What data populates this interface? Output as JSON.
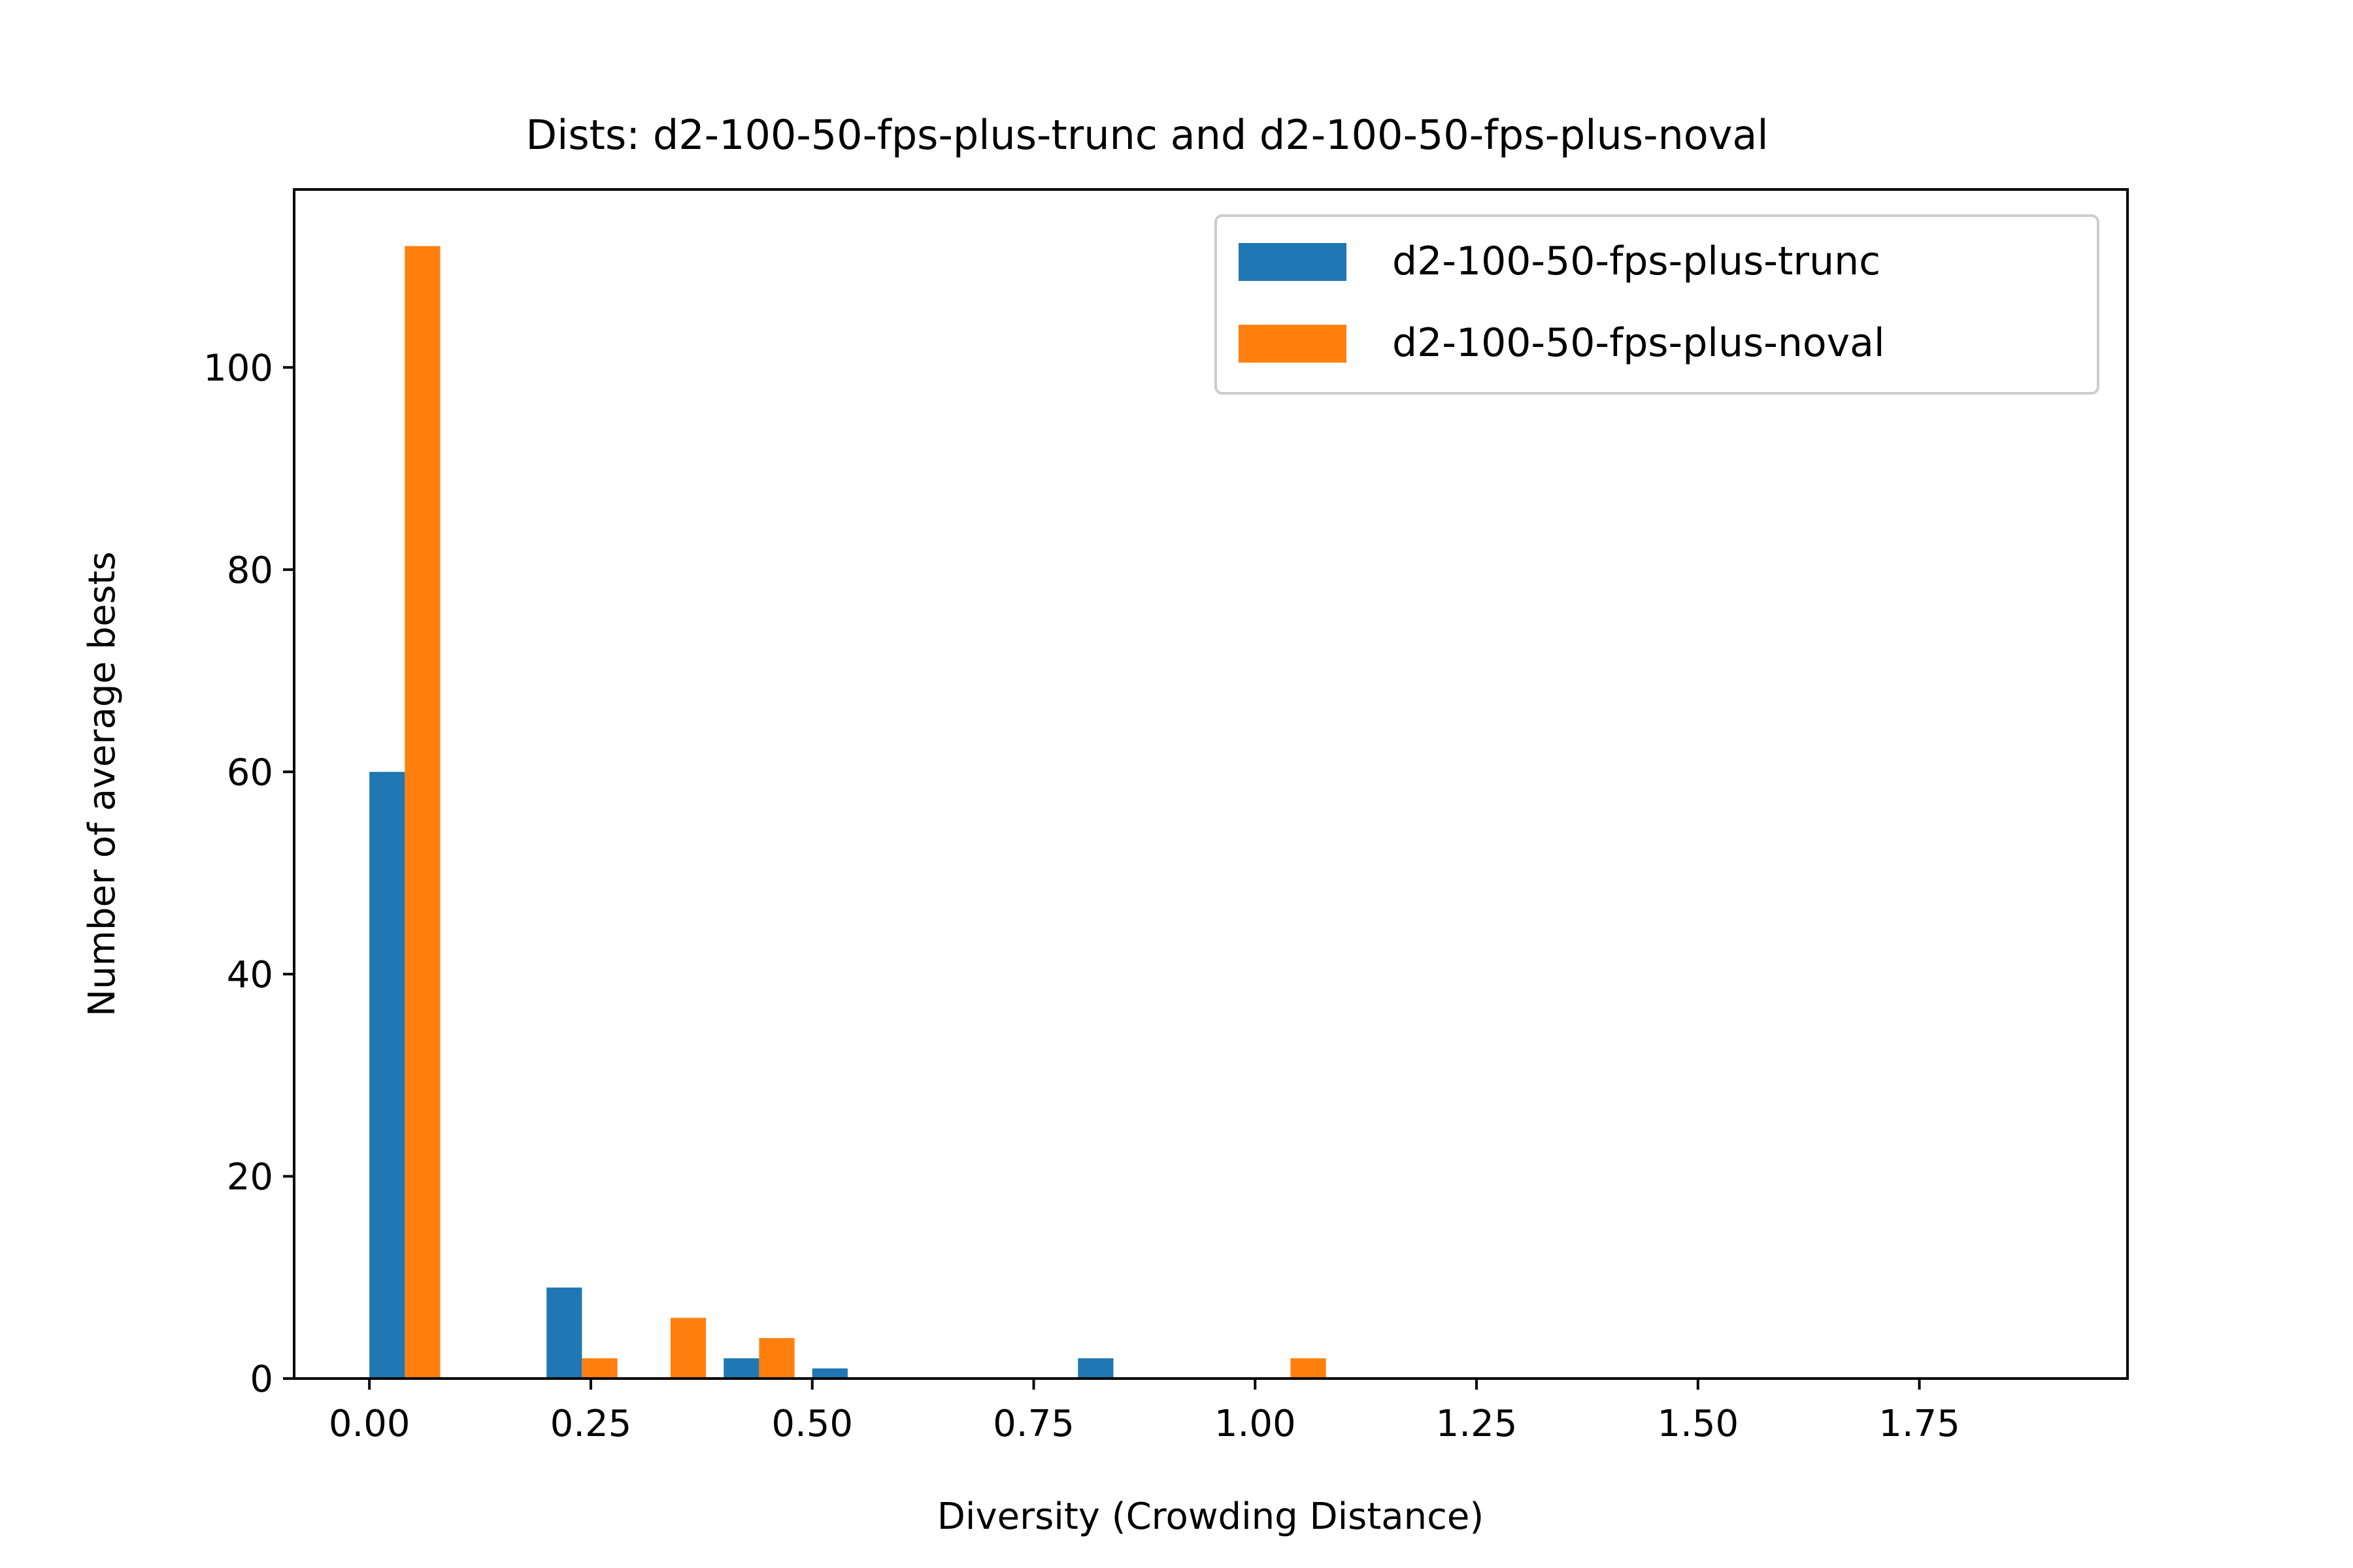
{
  "chart_data": {
    "type": "bar",
    "title": "Dists: d2-100-50-fps-plus-trunc and d2-100-50-fps-plus-noval",
    "xlabel": "Diversity (Crowding Distance)",
    "ylabel": "Number of average bests",
    "xlim": [
      -0.085,
      1.985
    ],
    "ylim": [
      0,
      117.6
    ],
    "xticks": [
      0.0,
      0.25,
      0.5,
      0.75,
      1.0,
      1.25,
      1.5,
      1.75
    ],
    "xtick_labels": [
      "0.00",
      "0.25",
      "0.50",
      "0.75",
      "1.00",
      "1.25",
      "1.50",
      "1.75"
    ],
    "yticks": [
      0,
      20,
      40,
      60,
      80,
      100
    ],
    "ytick_labels": [
      "0",
      "20",
      "40",
      "60",
      "80",
      "100"
    ],
    "grid": false,
    "legend_position": "top-right",
    "bar_width": 0.04,
    "series": [
      {
        "name": "d2-100-50-fps-plus-trunc",
        "color": "#1f77b4",
        "x": [
          0.0,
          0.2,
          0.4,
          0.5,
          0.8
        ],
        "values": [
          60,
          9,
          2,
          1,
          2
        ]
      },
      {
        "name": "d2-100-50-fps-plus-noval",
        "color": "#ff7f0e",
        "x": [
          0.04,
          0.24,
          0.34,
          0.44,
          1.04
        ],
        "values": [
          112,
          2,
          6,
          4,
          2
        ]
      }
    ]
  }
}
